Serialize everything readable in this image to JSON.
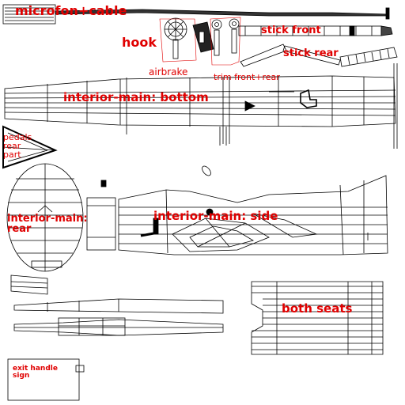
{
  "labels": {
    "microfon_cable": "microfon+cable",
    "hook": "hook",
    "airbrake": "airbrake",
    "stick_front": "stick front",
    "stick_rear": "stick rear",
    "trim_front_rear": "trim front+rear",
    "interior_bottom": "interior-main: bottom",
    "pedals_line1": "pedals",
    "pedals_line2": "rear",
    "pedals_line3": "part",
    "interior_rear_line1": "interior-main:",
    "interior_rear_line2": "rear",
    "interior_side": "interior-main: side",
    "both_seats": "both seats",
    "exit_handle_line1": "exit handle",
    "exit_handle_line2": "sign"
  },
  "colors": {
    "label": "#e00000",
    "wire": "#000000",
    "background": "#ffffff"
  }
}
